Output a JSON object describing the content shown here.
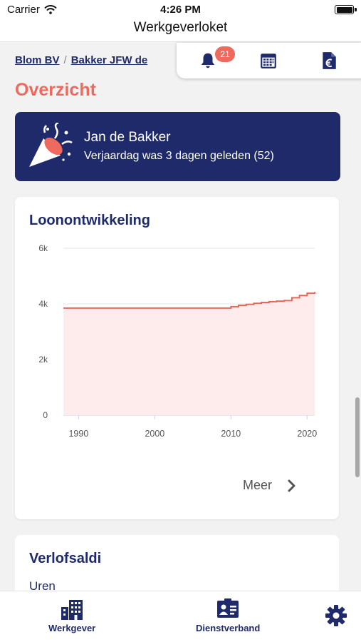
{
  "status_bar": {
    "carrier": "Carrier",
    "time": "4:26 PM"
  },
  "app": {
    "title": "Werkgeverloket"
  },
  "breadcrumb": [
    {
      "label": "Blom BV"
    },
    {
      "label": "Bakker JFW de"
    }
  ],
  "breadcrumb_separator": "/",
  "toolbar": {
    "items": [
      {
        "icon": "bell-icon",
        "badge": "21"
      },
      {
        "icon": "calendar-icon"
      },
      {
        "icon": "euro-document-icon"
      }
    ]
  },
  "page_title": "Overzicht",
  "birthday": {
    "icon": "party-popper-icon",
    "name": "Jan de Bakker",
    "message": "Verjaardag was 3 dagen geleden (52)"
  },
  "salary_card": {
    "title": "Loonontwikkeling",
    "more_label": "Meer",
    "chart_data": {
      "type": "area",
      "step": true,
      "x": [
        1988,
        2009,
        2010,
        2011,
        2012,
        2013,
        2014,
        2015,
        2016,
        2017,
        2018,
        2019,
        2020,
        2021
      ],
      "values": [
        3850,
        3850,
        3900,
        3950,
        3980,
        4020,
        4050,
        4080,
        4100,
        4120,
        4220,
        4300,
        4380,
        4430
      ],
      "x_ticks": [
        1990,
        2000,
        2010,
        2020
      ],
      "y_ticks": [
        "0",
        "2k",
        "4k",
        "6k"
      ],
      "y_tick_values": [
        0,
        2000,
        4000,
        6000
      ],
      "xlim": [
        1988,
        2021
      ],
      "ylim": [
        0,
        6000
      ],
      "grid": true,
      "line_color": "#e8675b",
      "fill_color": "#fdeceb"
    }
  },
  "leave_card": {
    "title": "Verlofsaldi",
    "unit_label": "Uren"
  },
  "bottom_nav": {
    "items": [
      {
        "label": "Werkgever",
        "icon": "building-icon"
      },
      {
        "label": "Dienstverband",
        "icon": "id-card-icon"
      },
      {
        "label": "",
        "icon": "gear-icon"
      }
    ]
  },
  "colors": {
    "navy": "#1f2a6b",
    "accent": "#ee6a5e",
    "background": "#f2f2f2"
  }
}
